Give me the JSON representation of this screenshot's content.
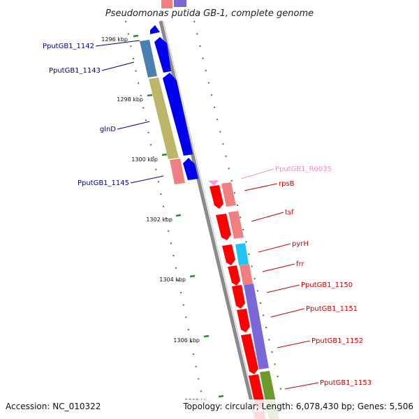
{
  "title": "Pseudomonas putida GB-1, complete genome",
  "footer": {
    "accession": "Accession: NC_010322",
    "topology": "Topology: circular; Length: 6,078,430 bp; Genes: 5,506"
  },
  "ticks": [
    "1296 kbp",
    "1298 kbp",
    "1300 kbp",
    "1302 kbp",
    "1304 kbp",
    "1306 kbp",
    "1308 kbp"
  ],
  "genes_left": [
    {
      "label": "PputGB1_1142",
      "color": "#00008b"
    },
    {
      "label": "PputGB1_1143",
      "color": "#00008b"
    },
    {
      "label": "glnD",
      "color": "#00008b"
    },
    {
      "label": "PputGB1_1145",
      "color": "#00008b"
    }
  ],
  "genes_right": [
    {
      "label": "PputGB1_R0035",
      "color": "#f08cc8"
    },
    {
      "label": "rpsB",
      "color": "#cc0000"
    },
    {
      "label": "tsf",
      "color": "#cc0000"
    },
    {
      "label": "pyrH",
      "color": "#cc0000"
    },
    {
      "label": "frr",
      "color": "#cc0000"
    },
    {
      "label": "PputGB1_1150",
      "color": "#cc0000"
    },
    {
      "label": "PputGB1_1151",
      "color": "#cc0000"
    },
    {
      "label": "PputGB1_1152",
      "color": "#cc0000"
    },
    {
      "label": "PputGB1_1153",
      "color": "#cc0000"
    }
  ],
  "colors": {
    "backbone": "#8a8a8a",
    "forward_cds": "#0000ee",
    "reverse_cds": "#ff0000",
    "trna": "#ff99dd",
    "cog_steel": "#4a7fb0",
    "cog_olive": "#bdb56a",
    "cog_pink": "#f08080",
    "cog_cyan": "#22c4f0",
    "cog_purple": "#7b68d8",
    "cog_green": "#6b9a2a",
    "tick_green": "#2a8a2a"
  }
}
